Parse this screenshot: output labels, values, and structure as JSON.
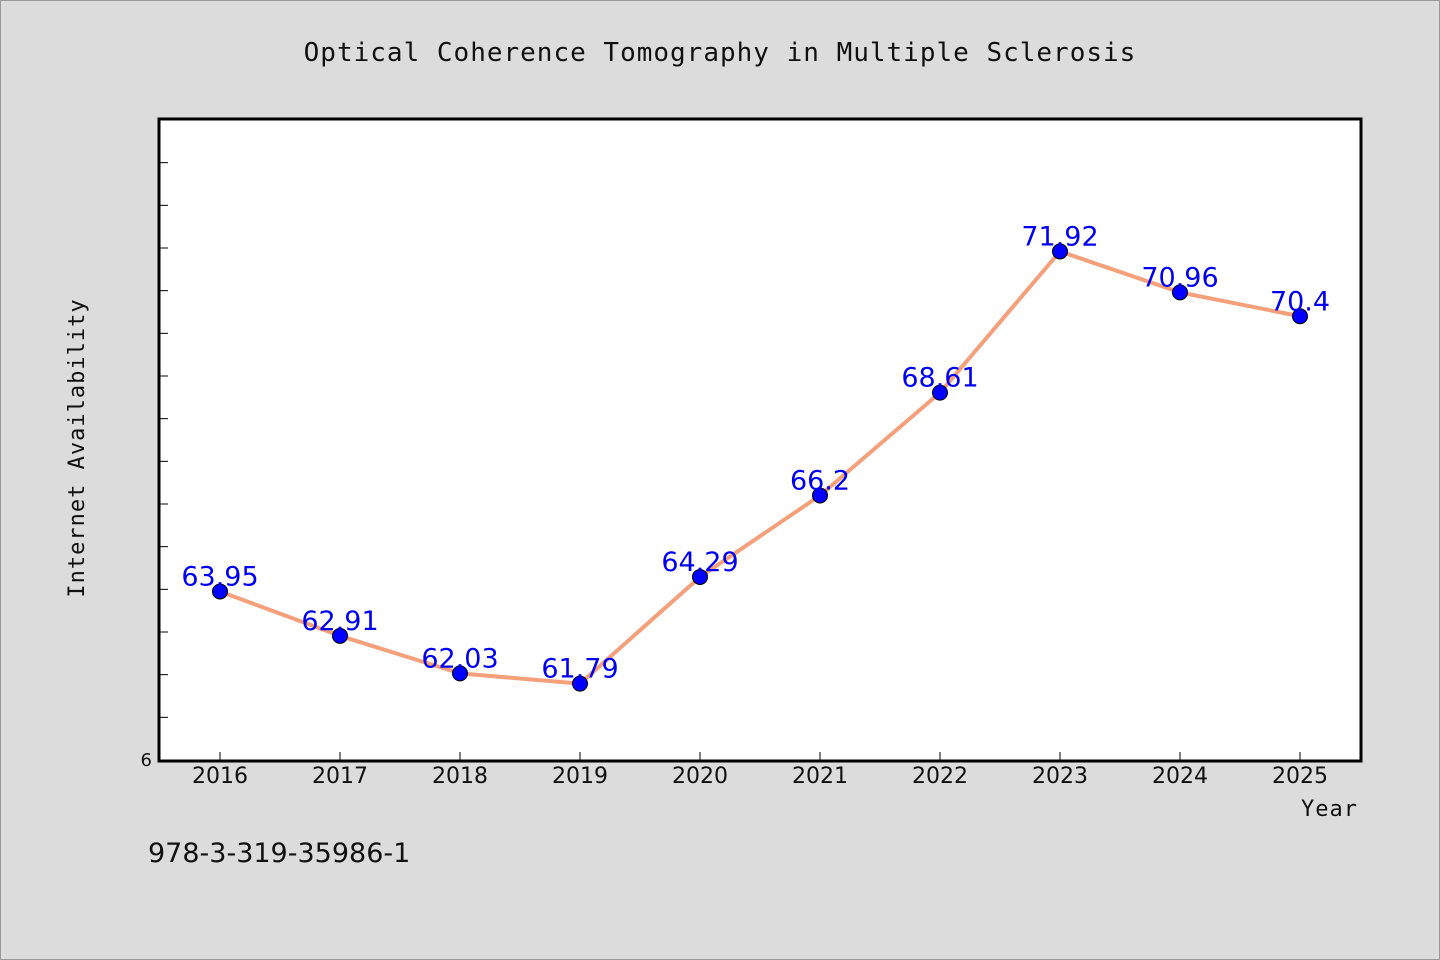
{
  "chart_data": {
    "type": "line",
    "title": "Optical Coherence Tomography in Multiple Sclerosis",
    "xlabel": "Year",
    "ylabel": "Internet Availability",
    "categories": [
      "2016",
      "2017",
      "2018",
      "2019",
      "2020",
      "2021",
      "2022",
      "2023",
      "2024",
      "2025"
    ],
    "series": [
      {
        "values": [
          63.95,
          62.91,
          62.03,
          61.79,
          64.29,
          66.2,
          68.61,
          71.92,
          70.96,
          70.4
        ],
        "labels": [
          "63.95",
          "62.91",
          "62.03",
          "61.79",
          "64.29",
          "66.2",
          "68.61",
          "71.92",
          "70.96",
          "70.4"
        ],
        "line_color": "#f4a07a",
        "marker_color": "#0000ff"
      }
    ],
    "ylim": [
      60,
      75
    ],
    "y_tick_labels": [
      "6"
    ],
    "grid": false,
    "legend": "none"
  },
  "footer": {
    "text": "978-3-319-35986-1"
  },
  "colors": {
    "background": "#dcdcdc",
    "plot_background": "#ffffff",
    "line": "#f4a07a",
    "marker": "#0000ff",
    "data_label": "#0000ee"
  }
}
